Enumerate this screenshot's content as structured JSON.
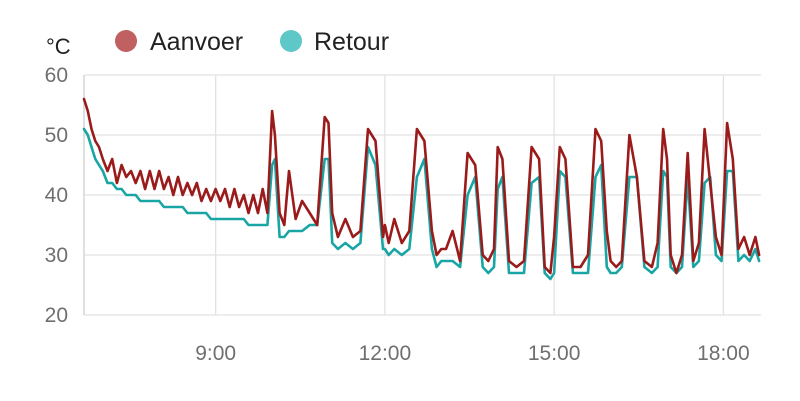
{
  "chart_data": {
    "type": "line",
    "title": "",
    "xlabel": "",
    "ylabel": "°C",
    "ylim": [
      20,
      60
    ],
    "xlim": [
      "06:40",
      "18:40"
    ],
    "y_ticks": [
      20,
      30,
      40,
      50,
      60
    ],
    "x_ticks": [
      "9:00",
      "12:00",
      "15:00",
      "18:00"
    ],
    "grid": true,
    "legend": "top-left",
    "colors": {
      "Aanvoer": "#9b1b1b",
      "Aanvoer_marker": "#c06060",
      "Retour": "#1aa5a5",
      "Retour_marker": "#5ec7c7"
    },
    "series": [
      {
        "name": "Aanvoer",
        "x": [
          "06:40",
          "06:44",
          "06:48",
          "06:52",
          "06:56",
          "07:00",
          "07:05",
          "07:10",
          "07:15",
          "07:20",
          "07:25",
          "07:30",
          "07:35",
          "07:40",
          "07:45",
          "07:50",
          "07:55",
          "08:00",
          "08:05",
          "08:10",
          "08:15",
          "08:20",
          "08:25",
          "08:30",
          "08:35",
          "08:40",
          "08:45",
          "08:50",
          "08:55",
          "09:00",
          "09:05",
          "09:10",
          "09:15",
          "09:20",
          "09:25",
          "09:30",
          "09:35",
          "09:40",
          "09:45",
          "09:50",
          "09:55",
          "10:00",
          "10:03",
          "10:08",
          "10:13",
          "10:18",
          "10:25",
          "10:32",
          "10:40",
          "10:48",
          "10:56",
          "11:00",
          "11:04",
          "11:10",
          "11:18",
          "11:26",
          "11:34",
          "11:42",
          "11:50",
          "11:58",
          "12:00",
          "12:04",
          "12:10",
          "12:18",
          "12:26",
          "12:34",
          "12:42",
          "12:50",
          "12:55",
          "13:00",
          "13:05",
          "13:12",
          "13:20",
          "13:28",
          "13:36",
          "13:44",
          "13:50",
          "13:56",
          "14:00",
          "14:05",
          "14:12",
          "14:20",
          "14:28",
          "14:36",
          "14:44",
          "14:50",
          "14:56",
          "15:00",
          "15:06",
          "15:12",
          "15:20",
          "15:28",
          "15:36",
          "15:44",
          "15:50",
          "15:56",
          "16:00",
          "16:06",
          "16:12",
          "16:20",
          "16:28",
          "16:36",
          "16:44",
          "16:50",
          "16:56",
          "17:00",
          "17:04",
          "17:10",
          "17:16",
          "17:22",
          "17:28",
          "17:34",
          "17:40",
          "17:46",
          "17:52",
          "17:58",
          "18:04",
          "18:10",
          "18:16",
          "18:22",
          "18:28",
          "18:34",
          "18:38"
        ],
        "y": [
          56,
          54,
          51,
          49,
          48,
          46,
          44,
          46,
          42,
          45,
          43,
          44,
          42,
          44,
          41,
          44,
          41,
          44,
          41,
          43,
          40,
          43,
          40,
          42,
          40,
          42,
          39,
          41,
          39,
          41,
          39,
          41,
          38,
          41,
          38,
          40,
          37,
          40,
          37,
          41,
          37,
          54,
          50,
          37,
          35,
          44,
          36,
          39,
          37,
          35,
          53,
          52,
          37,
          33,
          36,
          33,
          34,
          51,
          49,
          33,
          35,
          32,
          36,
          32,
          34,
          51,
          49,
          34,
          30,
          31,
          31,
          34,
          29,
          47,
          45,
          30,
          29,
          31,
          48,
          46,
          29,
          28,
          29,
          48,
          46,
          28,
          27,
          33,
          48,
          46,
          28,
          28,
          30,
          51,
          49,
          34,
          29,
          28,
          29,
          50,
          43,
          29,
          28,
          32,
          51,
          46,
          30,
          27,
          30,
          47,
          29,
          32,
          51,
          42,
          33,
          30,
          52,
          46,
          31,
          33,
          30,
          33,
          30
        ]
      },
      {
        "name": "Retour",
        "x": [
          "06:40",
          "06:44",
          "06:48",
          "06:52",
          "06:56",
          "07:00",
          "07:05",
          "07:10",
          "07:15",
          "07:20",
          "07:25",
          "07:30",
          "07:35",
          "07:40",
          "07:45",
          "07:50",
          "07:55",
          "08:00",
          "08:05",
          "08:10",
          "08:15",
          "08:20",
          "08:25",
          "08:30",
          "08:35",
          "08:40",
          "08:45",
          "08:50",
          "08:55",
          "09:00",
          "09:05",
          "09:10",
          "09:15",
          "09:20",
          "09:25",
          "09:30",
          "09:35",
          "09:40",
          "09:45",
          "09:50",
          "09:55",
          "10:00",
          "10:03",
          "10:08",
          "10:13",
          "10:18",
          "10:25",
          "10:32",
          "10:40",
          "10:48",
          "10:56",
          "11:00",
          "11:04",
          "11:10",
          "11:18",
          "11:26",
          "11:34",
          "11:42",
          "11:50",
          "11:58",
          "12:00",
          "12:04",
          "12:10",
          "12:18",
          "12:26",
          "12:34",
          "12:42",
          "12:50",
          "12:55",
          "13:00",
          "13:05",
          "13:12",
          "13:20",
          "13:28",
          "13:36",
          "13:44",
          "13:50",
          "13:56",
          "14:00",
          "14:05",
          "14:12",
          "14:20",
          "14:28",
          "14:36",
          "14:44",
          "14:50",
          "14:56",
          "15:00",
          "15:06",
          "15:12",
          "15:20",
          "15:28",
          "15:36",
          "15:44",
          "15:50",
          "15:56",
          "16:00",
          "16:06",
          "16:12",
          "16:20",
          "16:28",
          "16:36",
          "16:44",
          "16:50",
          "16:56",
          "17:00",
          "17:04",
          "17:10",
          "17:16",
          "17:22",
          "17:28",
          "17:34",
          "17:40",
          "17:46",
          "17:52",
          "17:58",
          "18:04",
          "18:10",
          "18:16",
          "18:22",
          "18:28",
          "18:34",
          "18:38"
        ],
        "y": [
          51,
          50,
          48,
          46,
          45,
          44,
          42,
          42,
          41,
          41,
          40,
          40,
          40,
          39,
          39,
          39,
          39,
          39,
          38,
          38,
          38,
          38,
          38,
          37,
          37,
          37,
          37,
          37,
          36,
          36,
          36,
          36,
          36,
          36,
          36,
          36,
          35,
          35,
          35,
          35,
          35,
          45,
          46,
          33,
          33,
          34,
          34,
          34,
          35,
          35,
          46,
          46,
          32,
          31,
          32,
          31,
          32,
          48,
          45,
          31,
          31,
          30,
          31,
          30,
          31,
          43,
          46,
          31,
          28,
          29,
          29,
          29,
          28,
          40,
          43,
          28,
          27,
          28,
          41,
          43,
          27,
          27,
          27,
          42,
          43,
          27,
          26,
          27,
          44,
          43,
          27,
          27,
          27,
          43,
          45,
          28,
          27,
          27,
          28,
          43,
          43,
          28,
          27,
          28,
          44,
          43,
          28,
          27,
          28,
          43,
          28,
          29,
          42,
          43,
          30,
          29,
          44,
          44,
          29,
          30,
          29,
          31,
          29
        ]
      }
    ]
  }
}
